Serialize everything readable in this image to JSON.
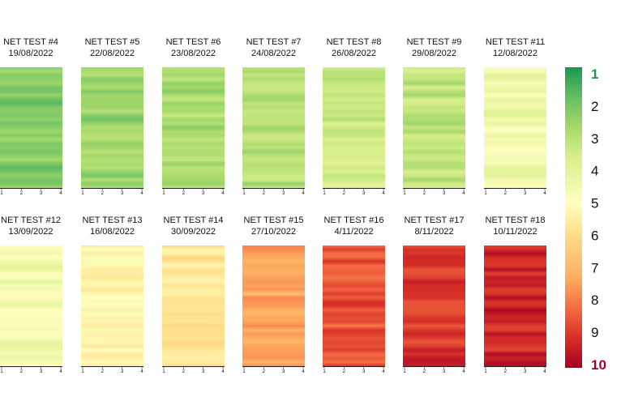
{
  "chart_data": {
    "type": "heatmap",
    "x_ticks": [
      "1",
      "2",
      "3",
      "4"
    ],
    "colorbar": {
      "min": 1,
      "max": 10,
      "ticks": [
        "1",
        "2",
        "3",
        "4",
        "5",
        "6",
        "7",
        "8",
        "9",
        "10"
      ],
      "colormap": "RdYlGn_r",
      "low_color": "#1a9850",
      "high_color": "#a50026"
    },
    "panels": [
      {
        "name": "NET TEST #4",
        "date": "19/08/2022",
        "mean_value": 2.3
      },
      {
        "name": "NET TEST #5",
        "date": "22/08/2022",
        "mean_value": 2.6
      },
      {
        "name": "NET TEST #6",
        "date": "23/08/2022",
        "mean_value": 2.9
      },
      {
        "name": "NET TEST #7",
        "date": "24/08/2022",
        "mean_value": 3.0
      },
      {
        "name": "NET TEST #8",
        "date": "26/08/2022",
        "mean_value": 3.5
      },
      {
        "name": "NET TEST #9",
        "date": "29/08/2022",
        "mean_value": 3.2
      },
      {
        "name": "NET TEST #11",
        "date": "12/08/2022",
        "mean_value": 4.5
      },
      {
        "name": "NET TEST #12",
        "date": "13/09/2022",
        "mean_value": 4.7
      },
      {
        "name": "NET TEST #13",
        "date": "16/08/2022",
        "mean_value": 5.2
      },
      {
        "name": "NET TEST #14",
        "date": "30/09/2022",
        "mean_value": 5.7
      },
      {
        "name": "NET TEST #15",
        "date": "27/10/2022",
        "mean_value": 7.3
      },
      {
        "name": "NET TEST #16",
        "date": "4/11/2022",
        "mean_value": 8.6
      },
      {
        "name": "NET TEST #17",
        "date": "8/11/2022",
        "mean_value": 9.0
      },
      {
        "name": "NET TEST #18",
        "date": "10/11/2022",
        "mean_value": 9.3
      }
    ]
  }
}
